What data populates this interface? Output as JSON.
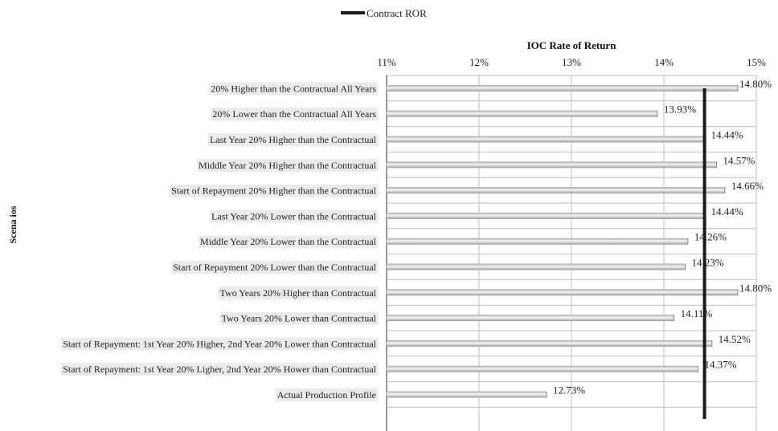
{
  "chart_data": {
    "type": "bar",
    "orientation": "horizontal",
    "title": "IOC Rate of Return",
    "ylabel": "Scena ios",
    "legend": {
      "position": "top",
      "entries": [
        "Contract ROR"
      ]
    },
    "xlim": [
      11,
      15
    ],
    "x_ticks": [
      11,
      12,
      13,
      14,
      15
    ],
    "x_tick_labels": [
      "11%",
      "12%",
      "13%",
      "14%",
      "15%"
    ],
    "reference_line": {
      "name": "Contract ROR",
      "value": 14.44
    },
    "grid": true,
    "categories": [
      "20% Higher than the Contractual  All Years",
      "20% Lower than the Contractual  All Years",
      "Last Year 20% Higher than the Contractual",
      "Middle Year 20% Higher than the Contractual",
      "Start of Repayment 20% Higher than the Contractual",
      "Last Year 20% Lower than the Contractual",
      "Middle Year 20% Lower than the Contractual",
      "Start of Repayment 20% Lower than the Contractual",
      "Two Years 20% Higher than Contractual",
      "Two Years 20% Lower than Contractual",
      "Start of Repayment:  1st Year 20% Higher, 2nd Year 20% Lower than Contractual",
      "Start of Repayment:  1st Year 20% Ligher, 2nd Year 20% Hower than Contractual",
      "Actual Production Profile"
    ],
    "values": [
      14.8,
      13.93,
      14.44,
      14.57,
      14.66,
      14.44,
      14.26,
      14.23,
      14.8,
      14.11,
      14.52,
      14.37,
      12.73
    ],
    "value_labels": [
      "14.80%",
      "13.93%",
      "14.44%",
      "14.57%",
      "14.66%",
      "14.44%",
      "14.26%",
      "14.23%",
      "14.80%",
      "14.11%",
      "14.52%",
      "14.37%",
      "12.73%"
    ],
    "colors": {
      "bar": "#c8c8c8",
      "bar_highlight": "#f4f4f4",
      "reference": "#1a1a1a",
      "grid": "#bfbfbf",
      "label_bg": "#ebebeb"
    }
  }
}
